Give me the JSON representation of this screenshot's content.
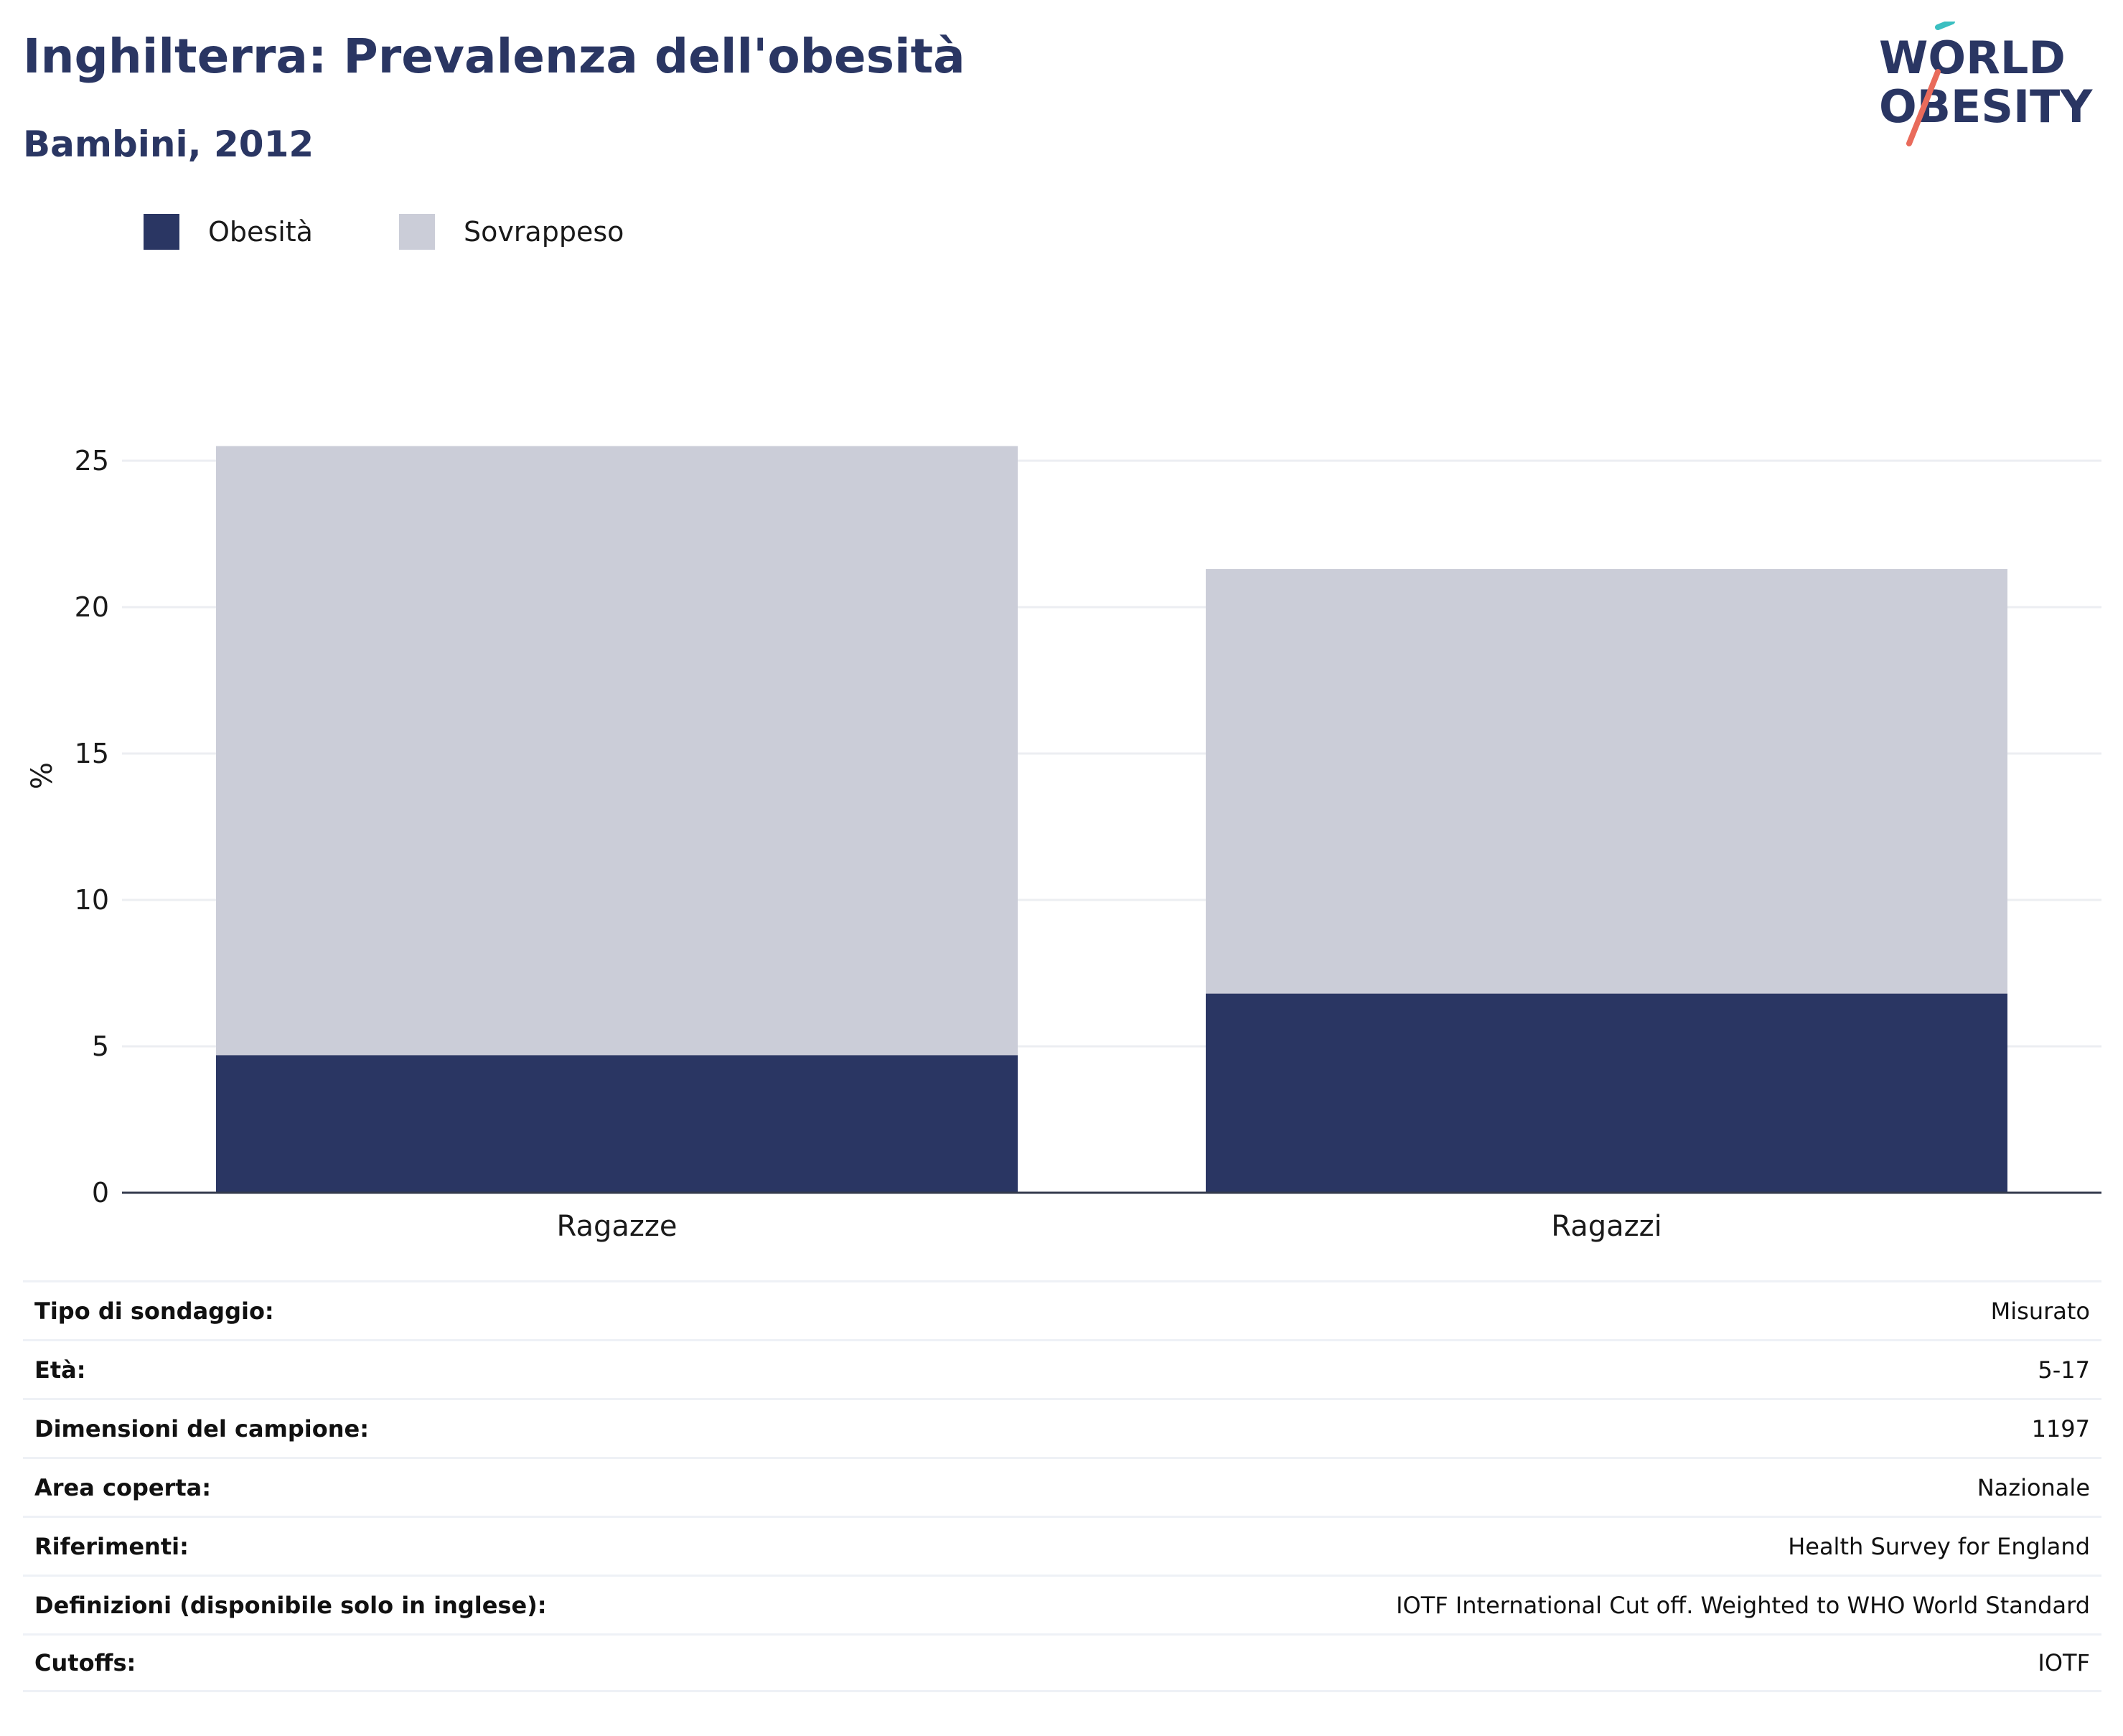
{
  "header": {
    "title": "Inghilterra: Prevalenza dell'obesità",
    "subtitle": "Bambini, 2012"
  },
  "logo": {
    "line1": "WORLD",
    "line2": "OBESITY",
    "accent_teal": "#3bbfc1",
    "accent_coral": "#e96b5b"
  },
  "legend": [
    {
      "label": "Obesità",
      "color": "#2a3663"
    },
    {
      "label": "Sovrappeso",
      "color": "#cbcdd8"
    }
  ],
  "chart_data": {
    "type": "bar",
    "stacked": true,
    "categories": [
      "Ragazze",
      "Ragazzi"
    ],
    "series": [
      {
        "name": "Obesità",
        "values": [
          4.7,
          6.8
        ],
        "color": "#2a3663"
      },
      {
        "name": "Sovrappeso",
        "values": [
          20.8,
          14.5
        ],
        "color": "#cbcdd8"
      }
    ],
    "ylabel": "%",
    "ylim": [
      0,
      27.5
    ],
    "yticks": [
      0,
      5,
      10,
      15,
      20,
      25
    ],
    "grid": true
  },
  "info": [
    {
      "label": "Tipo di sondaggio:",
      "value": "Misurato"
    },
    {
      "label": "Età:",
      "value": "5-17"
    },
    {
      "label": "Dimensioni del campione:",
      "value": "1197"
    },
    {
      "label": "Area coperta:",
      "value": "Nazionale"
    },
    {
      "label": "Riferimenti:",
      "value": "Health Survey for England"
    },
    {
      "label": "Definizioni (disponibile solo in inglese):",
      "value": "IOTF International Cut off. Weighted to WHO World Standard"
    },
    {
      "label": "Cutoffs:",
      "value": "IOTF"
    }
  ]
}
